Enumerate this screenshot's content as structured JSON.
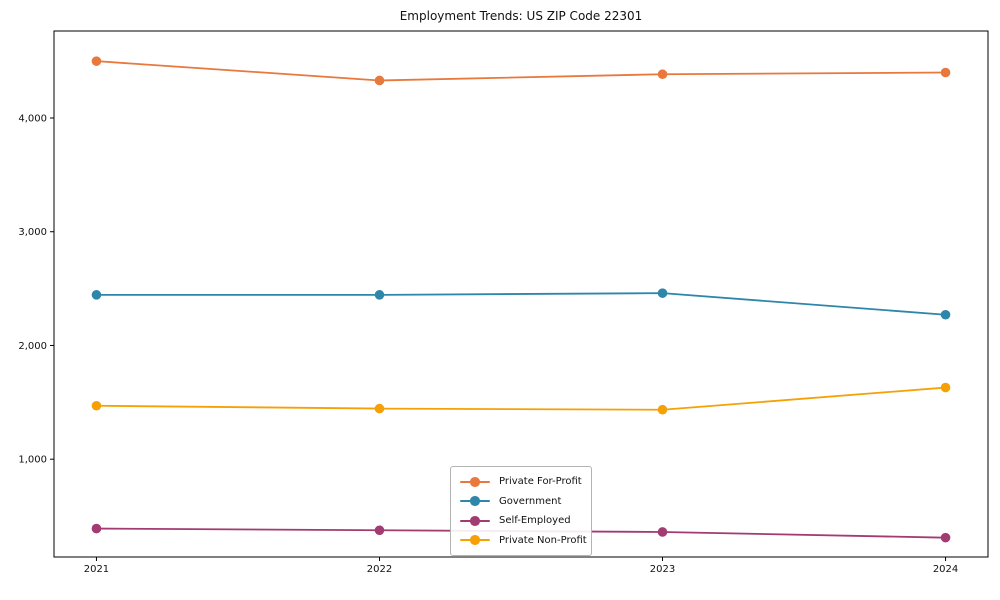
{
  "figure": {
    "background": "#ffffff"
  },
  "chart_data": {
    "type": "line",
    "title": "Employment Trends: US ZIP Code 22301",
    "xlabel": "",
    "ylabel": "",
    "x": [
      2021,
      2022,
      2023,
      2024
    ],
    "x_tick_labels": [
      "2021",
      "2022",
      "2023",
      "2024"
    ],
    "y_ticks": [
      {
        "value": 1000,
        "label": "1,000"
      },
      {
        "value": 2000,
        "label": "2,000"
      },
      {
        "value": 3000,
        "label": "3,000"
      },
      {
        "value": 4000,
        "label": "4,000"
      }
    ],
    "xlim": [
      2020.85,
      2024.15
    ],
    "ylim": [
      140,
      4765
    ],
    "grid": false,
    "legend_position": "lower center",
    "marker": "circle",
    "series": [
      {
        "name": "Private For-Profit",
        "color": "#E8783C",
        "values": [
          4500,
          4330,
          4385,
          4400
        ]
      },
      {
        "name": "Government",
        "color": "#2E86AB",
        "values": [
          2445,
          2445,
          2460,
          2270
        ]
      },
      {
        "name": "Self-Employed",
        "color": "#A23B72",
        "values": [
          390,
          375,
          360,
          310
        ]
      },
      {
        "name": "Private Non-Profit",
        "color": "#F5A105",
        "values": [
          1470,
          1445,
          1435,
          1630
        ]
      }
    ]
  }
}
